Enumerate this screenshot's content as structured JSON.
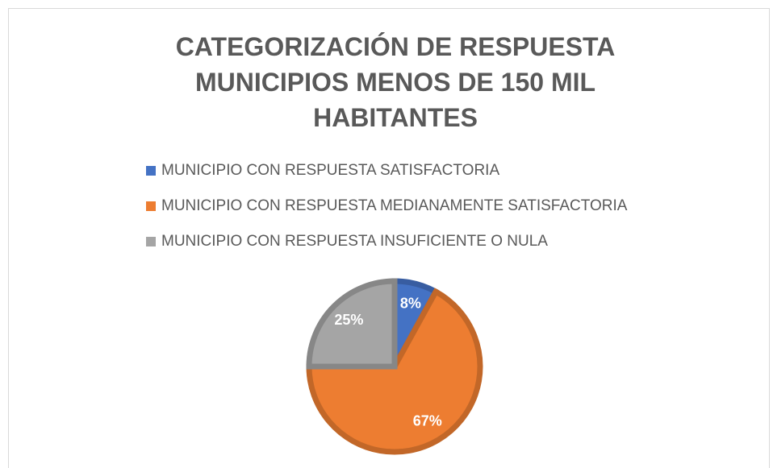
{
  "chart_data": {
    "type": "pie",
    "title": "CATEGORIZACIÓN DE RESPUESTA MUNICIPIOS MENOS DE 150 MIL HABITANTES",
    "categories": [
      "MUNICIPIO CON RESPUESTA SATISFACTORIA",
      "MUNICIPIO CON RESPUESTA MEDIANAMENTE SATISFACTORIA",
      "MUNICIPIO CON RESPUESTA INSUFICIENTE O NULA"
    ],
    "values": [
      8,
      67,
      25
    ],
    "value_labels": [
      "8%",
      "67%",
      "25%"
    ],
    "colors": [
      "#4472c4",
      "#ed7d31",
      "#a5a5a5"
    ],
    "legend": "top"
  }
}
